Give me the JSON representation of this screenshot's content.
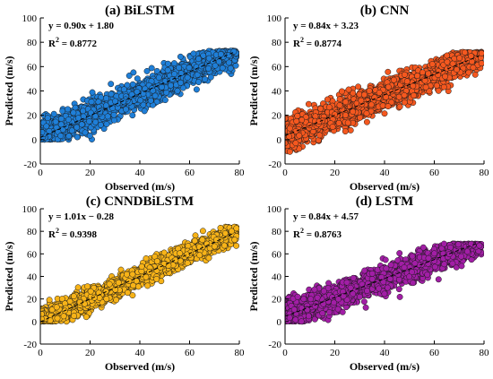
{
  "colors": {
    "BiLSTM": "#1f7fd8",
    "CNN": "#f5581f",
    "CNNDBiLSTM": "#f7b318",
    "LSTM": "#a21ea6",
    "marker_edge": "#1a1a1a",
    "fit_line": "#000000"
  },
  "chart_data": [
    {
      "type": "scatter",
      "title": "(a) BiLSTM",
      "xlabel": "Observed (m/s)",
      "ylabel": "Predicted (m/s)",
      "xlim": [
        0,
        80
      ],
      "ylim": [
        -20,
        100
      ],
      "xticks": [
        0,
        20,
        40,
        60,
        80
      ],
      "yticks": [
        -20,
        0,
        20,
        40,
        60,
        80,
        100
      ],
      "equation": "y = 0.90x + 1.80",
      "r2_label": "R",
      "r2_value": " = 0.8772",
      "fit": {
        "slope": 0.9,
        "intercept": 1.8,
        "x_range": [
          0,
          78
        ]
      },
      "cloud": {
        "x_range": [
          0,
          79
        ],
        "noise": 5.5,
        "min_y": 0,
        "max_y": 73,
        "n": 2400,
        "seed": 11
      },
      "color_key": "BiLSTM"
    },
    {
      "type": "scatter",
      "title": "(b) CNN",
      "xlabel": "Observed (m/s)",
      "ylabel": "Predicted (m/s)",
      "xlim": [
        0,
        80
      ],
      "ylim": [
        -20,
        100
      ],
      "xticks": [
        0,
        20,
        40,
        60,
        80
      ],
      "yticks": [
        -20,
        0,
        20,
        40,
        60,
        80,
        100
      ],
      "equation": "y = 0.84x + 3.23",
      "r2_label": "R",
      "r2_value": " = 0.8774",
      "fit": {
        "slope": 0.84,
        "intercept": 3.23,
        "x_range": [
          0,
          78
        ]
      },
      "cloud": {
        "x_range": [
          0,
          79
        ],
        "noise": 5.8,
        "min_y": -10,
        "max_y": 72,
        "n": 2400,
        "seed": 23
      },
      "color_key": "CNN"
    },
    {
      "type": "scatter",
      "title": "(c) CNNDBiLSTM",
      "xlabel": "Observed (m/s)",
      "ylabel": "Predicted (m/s)",
      "xlim": [
        0,
        80
      ],
      "ylim": [
        -20,
        100
      ],
      "xticks": [
        0,
        20,
        40,
        60,
        80
      ],
      "yticks": [
        -20,
        0,
        20,
        40,
        60,
        80,
        100
      ],
      "equation": "y = 1.01x − 0.28",
      "r2_label": "R",
      "r2_value": " = 0.9398",
      "fit": {
        "slope": 1.01,
        "intercept": -0.28,
        "x_range": [
          0,
          78
        ]
      },
      "cloud": {
        "x_range": [
          0,
          79
        ],
        "noise": 4.6,
        "min_y": 0,
        "max_y": 84,
        "n": 2400,
        "seed": 37
      },
      "color_key": "CNNDBiLSTM"
    },
    {
      "type": "scatter",
      "title": "(d) LSTM",
      "xlabel": "Observed (m/s)",
      "ylabel": "Predicted (m/s)",
      "xlim": [
        0,
        80
      ],
      "ylim": [
        -20,
        100
      ],
      "xticks": [
        0,
        20,
        40,
        60,
        80
      ],
      "yticks": [
        -20,
        0,
        20,
        40,
        60,
        80,
        100
      ],
      "equation": "y = 0.84x + 4.57",
      "r2_label": "R",
      "r2_value": " = 0.8763",
      "fit": {
        "slope": 0.84,
        "intercept": 4.57,
        "x_range": [
          0,
          78
        ]
      },
      "cloud": {
        "x_range": [
          0,
          79
        ],
        "noise": 5.6,
        "min_y": 0,
        "max_y": 69,
        "n": 2400,
        "seed": 53
      },
      "color_key": "LSTM"
    }
  ]
}
